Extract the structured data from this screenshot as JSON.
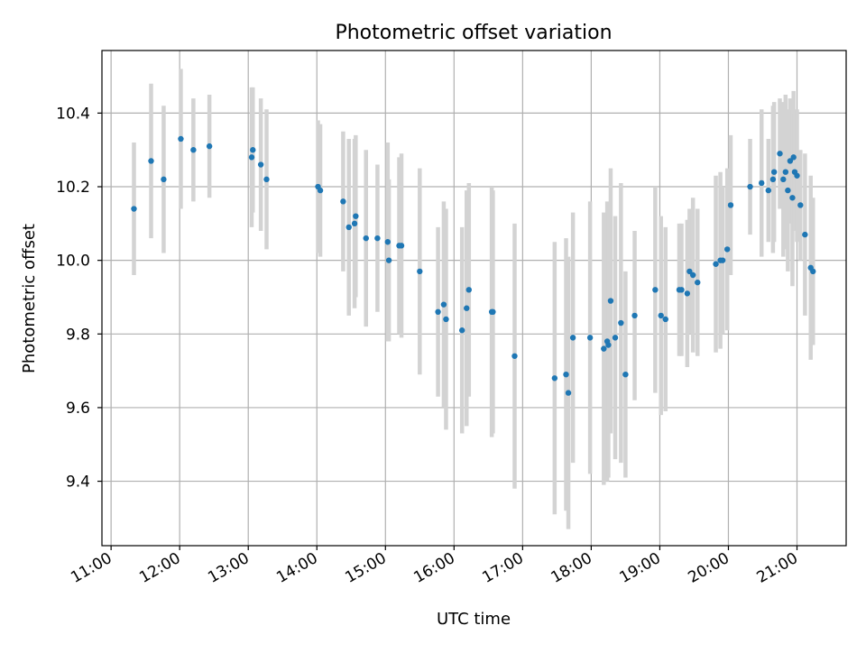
{
  "chart_data": {
    "type": "scatter",
    "title": "Photometric offset variation",
    "xlabel": "UTC time",
    "ylabel": "Photometric offset",
    "x_ticks": [
      "11:00",
      "12:00",
      "13:00",
      "14:00",
      "15:00",
      "16:00",
      "17:00",
      "18:00",
      "19:00",
      "20:00",
      "21:00"
    ],
    "y_ticks": [
      "9.4",
      "9.6",
      "9.8",
      "10.0",
      "10.2",
      "10.4"
    ],
    "x_range": [
      "10:52",
      "21:43"
    ],
    "ylim": [
      9.225,
      10.57
    ],
    "grid": true,
    "point_color": "#1f77b4",
    "errorbar_color": "#d3d3d3",
    "series": [
      {
        "x": [
          "11:20",
          "11:35",
          "11:46",
          "12:01",
          "12:12",
          "12:26",
          "13:03",
          "13:04",
          "13:11",
          "13:16",
          "14:01",
          "14:03",
          "14:23",
          "14:28",
          "14:33",
          "14:34",
          "14:43",
          "14:53",
          "15:02",
          "15:03",
          "15:12",
          "15:14",
          "15:30",
          "15:46",
          "15:51",
          "15:53",
          "16:07",
          "16:11",
          "16:13",
          "16:33",
          "16:34",
          "16:53",
          "17:28",
          "17:38",
          "17:40",
          "17:44",
          "17:59",
          "18:11",
          "18:14",
          "18:15",
          "18:17",
          "18:21",
          "18:26",
          "18:30",
          "18:38",
          "18:56",
          "19:01",
          "19:05",
          "19:17",
          "19:19",
          "19:24",
          "19:26",
          "19:29",
          "19:33",
          "19:49",
          "19:53",
          "19:55",
          "19:59",
          "20:02",
          "20:19",
          "20:29",
          "20:35",
          "20:39",
          "20:40",
          "20:45",
          "20:48",
          "20:50",
          "20:52",
          "20:54",
          "20:56",
          "20:57",
          "20:58",
          "21:00",
          "21:03",
          "21:07",
          "21:12",
          "21:14"
        ],
        "y": [
          10.14,
          10.27,
          10.22,
          10.33,
          10.3,
          10.31,
          10.28,
          10.3,
          10.26,
          10.22,
          10.2,
          10.19,
          10.16,
          10.09,
          10.1,
          10.12,
          10.06,
          10.06,
          10.05,
          10.0,
          10.04,
          10.04,
          9.97,
          9.86,
          9.88,
          9.84,
          9.81,
          9.87,
          9.92,
          9.86,
          9.86,
          9.74,
          9.68,
          9.69,
          9.64,
          9.79,
          9.79,
          9.76,
          9.78,
          9.77,
          9.89,
          9.79,
          9.83,
          9.69,
          9.85,
          9.92,
          9.85,
          9.84,
          9.92,
          9.92,
          9.91,
          9.97,
          9.96,
          9.94,
          9.99,
          10.0,
          10.0,
          10.03,
          10.15,
          10.2,
          10.21,
          10.19,
          10.22,
          10.24,
          10.29,
          10.22,
          10.24,
          10.19,
          10.27,
          10.17,
          10.28,
          10.24,
          10.23,
          10.15,
          10.07,
          9.98,
          9.97
        ],
        "yerr": [
          0.18,
          0.21,
          0.2,
          0.19,
          0.14,
          0.14,
          0.19,
          0.17,
          0.18,
          0.19,
          0.18,
          0.18,
          0.19,
          0.24,
          0.23,
          0.22,
          0.24,
          0.2,
          0.27,
          0.22,
          0.24,
          0.25,
          0.28,
          0.23,
          0.28,
          0.3,
          0.28,
          0.32,
          0.29,
          0.34,
          0.33,
          0.36,
          0.37,
          0.37,
          0.37,
          0.34,
          0.37,
          0.37,
          0.38,
          0.36,
          0.36,
          0.33,
          0.38,
          0.28,
          0.23,
          0.28,
          0.27,
          0.25,
          0.18,
          0.18,
          0.2,
          0.17,
          0.21,
          0.2,
          0.24,
          0.24,
          0.2,
          0.22,
          0.19,
          0.13,
          0.2,
          0.14,
          0.2,
          0.19,
          0.15,
          0.21,
          0.21,
          0.22,
          0.17,
          0.24,
          0.18,
          0.16,
          0.18,
          0.15,
          0.22,
          0.25,
          0.2
        ]
      }
    ]
  }
}
